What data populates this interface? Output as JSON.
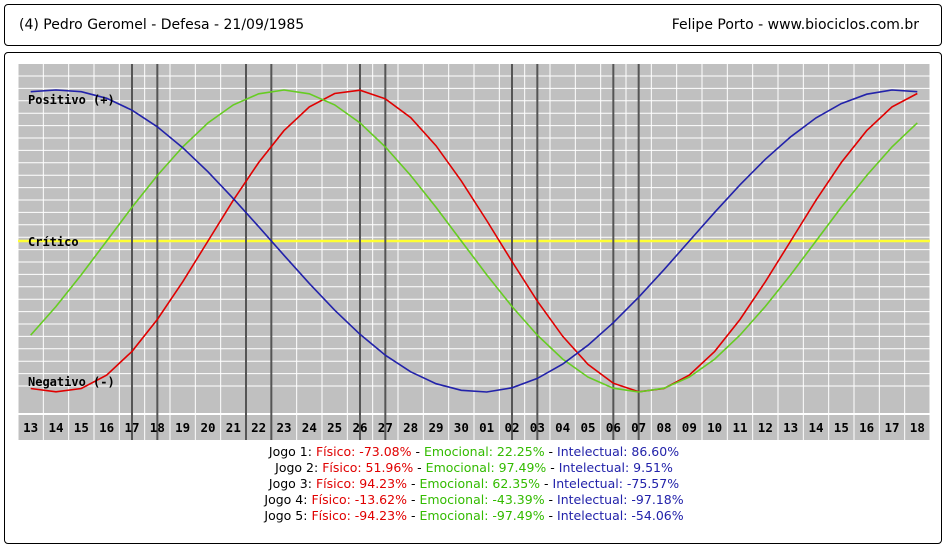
{
  "header": {
    "left": "(4)  Pedro Geromel - Defesa -  21/09/1985",
    "right": "Felipe Porto   -   www.biociclos.com.br"
  },
  "chart_data": {
    "type": "line",
    "title": "",
    "categories": [
      "13",
      "14",
      "15",
      "16",
      "17",
      "18",
      "19",
      "20",
      "21",
      "22",
      "23",
      "24",
      "25",
      "26",
      "27",
      "28",
      "29",
      "30",
      "01",
      "02",
      "03",
      "04",
      "05",
      "06",
      "07",
      "08",
      "09",
      "10",
      "11",
      "12",
      "13",
      "14",
      "15",
      "16",
      "17",
      "18"
    ],
    "level_labels": {
      "positive": "Positivo (+)",
      "critical": "Crítico",
      "negative": "Negativo (-)"
    },
    "ylim": [
      -100,
      100
    ],
    "series": [
      {
        "name": "Físico",
        "color": "#e00000",
        "values": [
          -97.7,
          -99.9,
          -97.7,
          -88.8,
          -73.1,
          -52.0,
          -27.0,
          0.0,
          27.0,
          52.0,
          73.1,
          88.8,
          97.7,
          99.9,
          94.2,
          81.7,
          63.1,
          39.8,
          13.6,
          -13.6,
          -39.8,
          -63.1,
          -81.7,
          -94.2,
          -99.9,
          -97.7,
          -88.8,
          -73.1,
          -52.0,
          -27.0,
          0.0,
          27.0,
          52.0,
          73.1,
          88.8,
          97.7
        ]
      },
      {
        "name": "Emocional",
        "color": "#66cc22",
        "values": [
          -62.3,
          -43.4,
          -22.3,
          0.0,
          22.3,
          43.4,
          62.3,
          78.2,
          90.1,
          97.5,
          100.0,
          97.5,
          90.1,
          78.2,
          62.3,
          43.4,
          22.3,
          0.0,
          -22.3,
          -43.4,
          -62.3,
          -78.2,
          -90.1,
          -97.5,
          -100.0,
          -97.5,
          -90.1,
          -78.2,
          -62.3,
          -43.4,
          -22.3,
          0.0,
          22.3,
          43.4,
          62.3,
          78.2
        ]
      },
      {
        "name": "Intelectual",
        "color": "#2222aa",
        "values": [
          98.9,
          100.0,
          98.9,
          94.5,
          86.6,
          75.6,
          61.8,
          45.8,
          28.1,
          9.5,
          -9.5,
          -28.1,
          -45.8,
          -61.8,
          -75.6,
          -86.6,
          -94.5,
          -98.9,
          -100.0,
          -97.2,
          -91.0,
          -81.5,
          -69.0,
          -54.1,
          -37.2,
          -19.0,
          0.0,
          19.0,
          37.2,
          54.1,
          69.0,
          81.5,
          91.0,
          97.2,
          100.0,
          98.9
        ]
      }
    ],
    "marker_days": [
      4.5,
      5.5,
      9.0,
      10.0,
      13.5,
      14.5,
      19.5,
      20.5,
      23.5,
      24.5
    ],
    "colors": {
      "plot_bg": "#c0c0c0",
      "grid": "#ffffff",
      "critical": "#ffff33",
      "marker": "#555555"
    }
  },
  "games": [
    {
      "label": "Jogo 1:",
      "fisico": "Físico: -73.08%",
      "emocional": "Emocional: 22.25%",
      "intelectual": "Intelectual: 86.60%"
    },
    {
      "label": "Jogo 2:",
      "fisico": "Físico: 51.96%",
      "emocional": "Emocional: 97.49%",
      "intelectual": "Intelectual: 9.51%"
    },
    {
      "label": "Jogo 3:",
      "fisico": "Físico: 94.23%",
      "emocional": "Emocional: 62.35%",
      "intelectual": "Intelectual: -75.57%"
    },
    {
      "label": "Jogo 4:",
      "fisico": "Físico: -13.62%",
      "emocional": "Emocional: -43.39%",
      "intelectual": "Intelectual: -97.18%"
    },
    {
      "label": "Jogo 5:",
      "fisico": "Físico: -94.23%",
      "emocional": "Emocional: -97.49%",
      "intelectual": "Intelectual: -54.06%"
    }
  ],
  "separator": " - "
}
